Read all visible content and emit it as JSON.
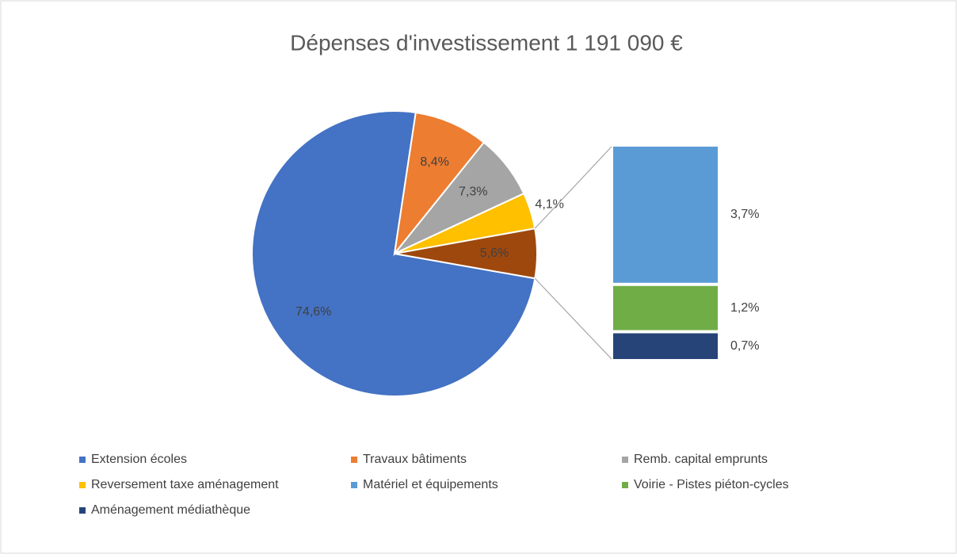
{
  "chart_data": {
    "type": "pie",
    "title": "Dépenses d'investissement  1 191 090 €",
    "categories": [
      "Extension écoles",
      "Travaux bâtiments",
      "Remb. capital emprunts",
      "Reversement taxe aménagement",
      null
    ],
    "values": [
      74.6,
      8.4,
      7.3,
      4.1,
      5.6
    ],
    "value_labels": [
      "74,6%",
      "8,4%",
      "7,3%",
      "4,1%",
      "5,6%"
    ],
    "colors": [
      "#4472c4",
      "#ed7d31",
      "#a5a5a5",
      "#ffc000",
      "#9e480e"
    ],
    "secondary": {
      "type": "bar",
      "categories": [
        "Matériel et équipements",
        "Voirie - Pistes piéton-cycles",
        "Aménagement médiathèque"
      ],
      "values": [
        3.7,
        1.2,
        0.7
      ],
      "value_labels": [
        "3,7%",
        "1,2%",
        "0,7%"
      ],
      "colors": [
        "#5b9bd5",
        "#70ad47",
        "#264478"
      ]
    }
  }
}
